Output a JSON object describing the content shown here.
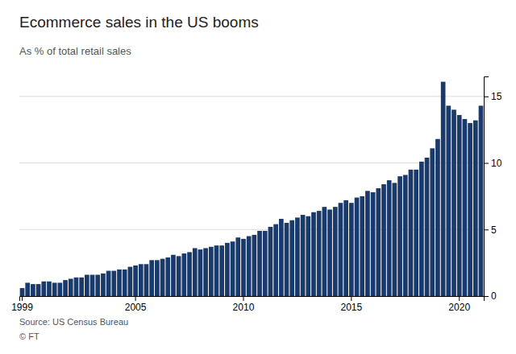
{
  "chart_data": {
    "type": "bar",
    "title": "Ecommerce sales in the US booms",
    "subtitle": "As % of total retail sales",
    "annotations": [
      "Source: US Census Bureau",
      "© FT"
    ],
    "categories": [
      "1999",
      null,
      null,
      null,
      null,
      null,
      null,
      null,
      null,
      null,
      null,
      null,
      null,
      null,
      null,
      null,
      null,
      null,
      null,
      null,
      null,
      "2005",
      null,
      null,
      null,
      null,
      null,
      null,
      null,
      null,
      null,
      null,
      null,
      null,
      null,
      null,
      null,
      null,
      null,
      null,
      null,
      "2010",
      null,
      null,
      null,
      null,
      null,
      null,
      null,
      null,
      null,
      null,
      null,
      null,
      null,
      null,
      null,
      null,
      null,
      null,
      null,
      "2015",
      null,
      null,
      null,
      null,
      null,
      null,
      null,
      null,
      null,
      null,
      null,
      null,
      null,
      null,
      null,
      null,
      null,
      null,
      null,
      "2020",
      null,
      null,
      null,
      null
    ],
    "values": [
      0.6,
      1.0,
      0.9,
      0.9,
      1.1,
      1.1,
      1.0,
      1.0,
      1.2,
      1.3,
      1.4,
      1.4,
      1.6,
      1.6,
      1.6,
      1.7,
      1.9,
      1.9,
      2.0,
      2.0,
      2.2,
      2.3,
      2.4,
      2.4,
      2.7,
      2.7,
      2.8,
      2.9,
      3.1,
      3.0,
      3.2,
      3.3,
      3.6,
      3.5,
      3.6,
      3.7,
      3.8,
      3.8,
      4.0,
      4.1,
      4.4,
      4.3,
      4.5,
      4.6,
      4.9,
      4.9,
      5.2,
      5.4,
      5.8,
      5.5,
      5.7,
      5.9,
      6.1,
      6.0,
      6.3,
      6.4,
      6.7,
      6.5,
      6.7,
      7.0,
      7.2,
      7.0,
      7.4,
      7.5,
      7.9,
      7.8,
      8.1,
      8.4,
      8.7,
      8.5,
      9.0,
      9.1,
      9.5,
      9.5,
      10.1,
      10.4,
      11.1,
      11.8,
      16.1,
      14.3,
      14.0,
      13.6,
      13.3,
      13.0,
      13.2,
      14.3
    ],
    "color": "#1a3a6b",
    "ylim": [
      0,
      16.5
    ],
    "yticks": [
      0,
      5,
      10,
      15
    ],
    "grid": true
  }
}
